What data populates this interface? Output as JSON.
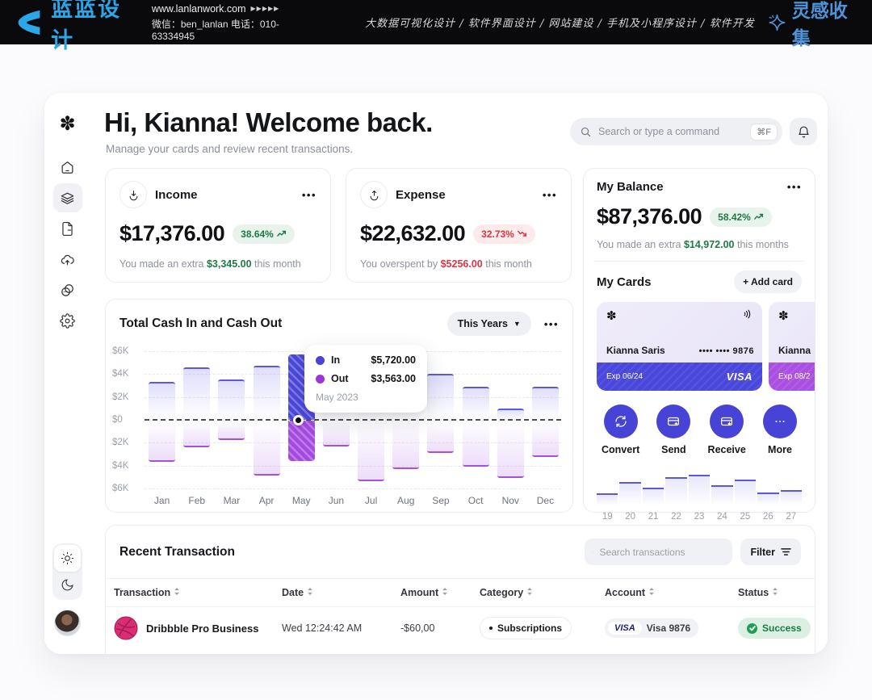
{
  "banner": {
    "brand": "蓝蓝设计",
    "url": "www.lanlanwork.com",
    "url_arrows": "▶▶▶▶▶",
    "wechat_phone": "微信：ben_lanlan   电话：010-63334945",
    "services": "大数据可视化设计 / 软件界面设计 / 网站建设 / 手机及小程序设计 / 软件开发",
    "collect": "灵感收集"
  },
  "sidebar": {
    "logo_glyph": "✽",
    "items": [
      {
        "icon": "home-icon",
        "active": false
      },
      {
        "icon": "layers-icon",
        "active": true
      },
      {
        "icon": "file-icon",
        "active": false
      },
      {
        "icon": "cloud-upload-icon",
        "active": false
      },
      {
        "icon": "coins-icon",
        "active": false
      },
      {
        "icon": "settings-icon",
        "active": false
      }
    ],
    "theme": [
      "sun-icon",
      "moon-icon"
    ]
  },
  "header": {
    "title": "Hi, Kianna! Welcome back.",
    "subtitle": "Manage your cards and review recent transactions.",
    "search_placeholder": "Search or type a command",
    "search_shortcut": "⌘F"
  },
  "stats": {
    "income": {
      "label": "Income",
      "amount": "$17,376.00",
      "badge": "38.64%",
      "note_prefix": "You made an extra ",
      "note_value": "$3,345.00",
      "note_suffix": " this month"
    },
    "expense": {
      "label": "Expense",
      "amount": "$22,632.00",
      "badge": "32.73%",
      "note_prefix": "You overspent by ",
      "note_value": "$5256.00",
      "note_suffix": " this month"
    },
    "balance": {
      "label": "My Balance",
      "amount": "$87,376.00",
      "badge": "58.42%",
      "note_prefix": "You made an extra ",
      "note_value": "$14,972.00",
      "note_suffix": " this months"
    }
  },
  "my_cards": {
    "label": "My Cards",
    "add_button": "+ Add card",
    "card_logo_glyph": "✽",
    "card": {
      "holder": "Kianna Saris",
      "masked": "•••• •••• 9876",
      "exp": "Exp 06/24",
      "brand": "VISA"
    },
    "card2": {
      "holder": "Kianna",
      "exp": "Exp 08/2"
    }
  },
  "actions": [
    {
      "icon": "convert-icon",
      "label": "Convert"
    },
    {
      "icon": "send-icon",
      "label": "Send"
    },
    {
      "icon": "receive-icon",
      "label": "Receive"
    },
    {
      "icon": "more-icon",
      "label": "More"
    }
  ],
  "mini_chart": {
    "type": "bar",
    "labels": [
      "19",
      "20",
      "21",
      "22",
      "23",
      "24",
      "25",
      "26",
      "27"
    ],
    "values": [
      1.0,
      2.0,
      1.5,
      2.4,
      2.6,
      1.7,
      2.2,
      1.1,
      1.3
    ],
    "max": 3
  },
  "chart_header": {
    "title": "Total Cash In and Cash Out",
    "range": "This Years",
    "chevron": "▼"
  },
  "chart_data": {
    "type": "bar",
    "subtype": "diverging",
    "title": "Total Cash In and Cash Out",
    "categories": [
      "Jan",
      "Feb",
      "Mar",
      "Apr",
      "May",
      "Jun",
      "Jul",
      "Aug",
      "Sep",
      "Oct",
      "Nov",
      "Dec"
    ],
    "series": [
      {
        "name": "In",
        "color": "#5b58e6",
        "values_k": [
          3.3,
          4.6,
          3.5,
          4.7,
          5.72,
          4.5,
          4.2,
          4.9,
          4.05,
          2.9,
          1.0,
          2.9
        ]
      },
      {
        "name": "Out",
        "color": "#a551e0",
        "values_k": [
          3.6,
          2.3,
          1.7,
          4.8,
          3.56,
          2.25,
          5.3,
          4.2,
          2.8,
          4.0,
          5.0,
          3.2
        ]
      }
    ],
    "y_tick_labels": [
      "$6K",
      "$4K",
      "$2K",
      "$0",
      "$2K",
      "$4K",
      "$6K"
    ],
    "ymax_k": 6,
    "grid": "dashed",
    "highlight_index": 4,
    "tooltip": {
      "in_label": "In",
      "in_value": "$5,720.00",
      "out_label": "Out",
      "out_value": "$3,563.00",
      "period": "May 2023"
    }
  },
  "transactions": {
    "title": "Recent Transaction",
    "search_placeholder": "Search transactions",
    "filter_label": "Filter",
    "columns": [
      "Transaction",
      "Date",
      "Amount",
      "Category",
      "Account",
      "Status"
    ],
    "rows": [
      {
        "name": "Dribbble Pro Business",
        "icon": "dribbble-icon",
        "date": "Wed 12:24:42 AM",
        "amount": "-$60,00",
        "category": "Subscriptions",
        "account_brand": "VISA",
        "account": "Visa 9876",
        "status": "Success"
      }
    ]
  },
  "colors": {
    "accent_blue": "#4643d6",
    "bar_in": "#5b58e6",
    "bar_out": "#a551e0",
    "green_badge_bg": "#e8f3ec",
    "green_text": "#1e7a46",
    "red_badge_bg": "#fdeaea",
    "red_text": "#dc3545",
    "banner_bg": "#0a0a0d",
    "brand_blue": "#2aa7e8",
    "visa_blue": "#1a1f71"
  }
}
